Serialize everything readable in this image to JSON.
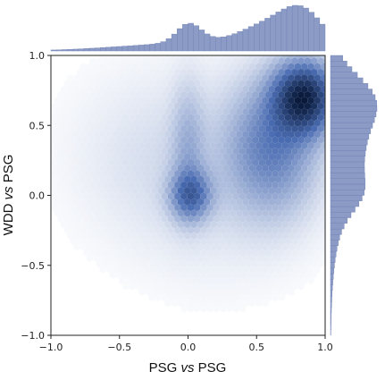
{
  "chart_data": {
    "type": "hexbin",
    "subtype": "joint-plot-with-marginal-histograms",
    "xlabel": {
      "pre": "PSG ",
      "mid": "vs",
      "post": " PSG"
    },
    "ylabel": {
      "pre": "WDD ",
      "mid": "vs",
      "post": " PSG"
    },
    "xlim": [
      -1.0,
      1.0
    ],
    "ylim": [
      -1.0,
      1.0
    ],
    "x_ticks": [
      -1.0,
      -0.5,
      0.0,
      0.5,
      1.0
    ],
    "y_ticks": [
      -1.0,
      -0.5,
      0.0,
      0.5,
      1.0
    ],
    "x_tick_labels": [
      "−1.0",
      "−0.5",
      "0.0",
      "0.5",
      "1.0"
    ],
    "y_tick_labels": [
      "−1.0",
      "−0.5",
      "0.0",
      "0.5",
      "1.0"
    ],
    "grid": false,
    "colormap": "white-to-blue",
    "color_low": "#ffffff",
    "color_high": "#08193a",
    "histogram_color": "#8b9bc6",
    "density_clusters": [
      {
        "x": 0.85,
        "y": 0.7,
        "sx": 0.15,
        "sy": 0.17,
        "weight": 1.0
      },
      {
        "x": 0.62,
        "y": 0.35,
        "sx": 0.22,
        "sy": 0.32,
        "weight": 0.42
      },
      {
        "x": 0.02,
        "y": 0.0,
        "sx": 0.1,
        "sy": 0.12,
        "weight": 0.5
      },
      {
        "x": 0.0,
        "y": 0.35,
        "sx": 0.08,
        "sy": 0.3,
        "weight": 0.18
      },
      {
        "x": 0.2,
        "y": 0.15,
        "sx": 0.45,
        "sy": 0.45,
        "weight": 0.09
      },
      {
        "x": -0.35,
        "y": 0.3,
        "sx": 0.4,
        "sy": 0.4,
        "weight": 0.04
      }
    ]
  }
}
